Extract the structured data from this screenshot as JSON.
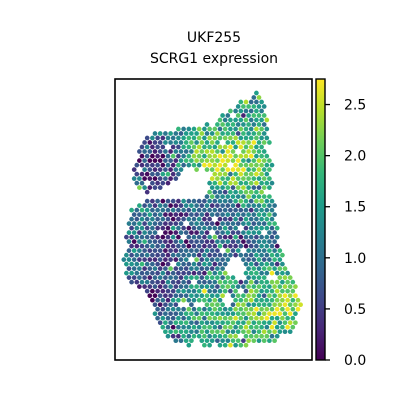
{
  "chart_data": {
    "type": "scatter",
    "title_lines": [
      "UKF255",
      "SCRG1 expression"
    ],
    "xlabel": "",
    "ylabel": "",
    "grid": false,
    "axes_ticks": false,
    "colormap": "viridis",
    "colorbar": {
      "vmin": 0.0,
      "vmax": 2.75,
      "ticks": [
        0.0,
        0.5,
        1.0,
        1.5,
        2.0,
        2.5
      ],
      "tick_labels": [
        "0.0",
        "0.5",
        "1.0",
        "1.5",
        "2.0",
        "2.5"
      ]
    },
    "stops": [
      "#440154",
      "#482878",
      "#3e4989",
      "#31688e",
      "#26828e",
      "#1f9e89",
      "#35b779",
      "#6ece58",
      "#b5de2b",
      "#fde725"
    ],
    "seed": 255
  }
}
